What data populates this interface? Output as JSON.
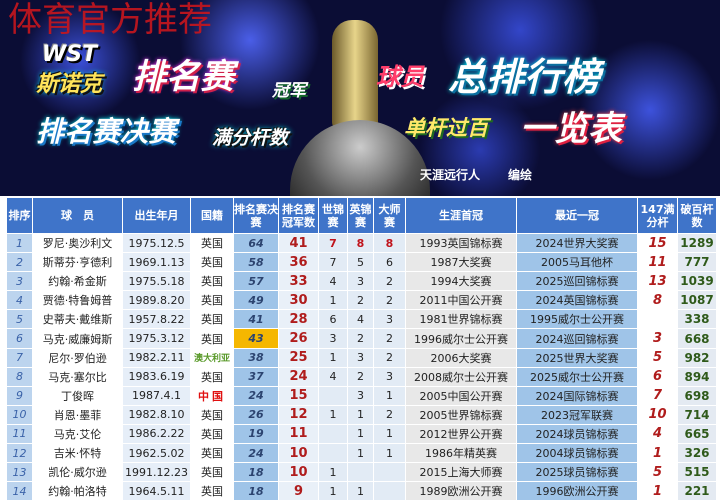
{
  "watermark": "体育官方推荐",
  "banner": {
    "logo": "WST",
    "line1a": "斯诺克",
    "line1b": "排名赛",
    "line1c": "冠军",
    "line1d": "球员",
    "line1e": "总排行榜",
    "line2a": "排名赛决赛",
    "line2b": "满分杆数",
    "line2c": "单杆过百",
    "line2d": "一览表",
    "author": "天涯远行人",
    "credit": "编绘"
  },
  "table": {
    "headers": [
      "排序",
      "球　员",
      "出生年月",
      "国籍",
      "排名赛决赛",
      "排名赛冠军数",
      "世锦赛",
      "英锦赛",
      "大师赛",
      "生涯首冠",
      "最近一冠",
      "147满分杆",
      "破百杆数"
    ],
    "rows": [
      [
        "1",
        "罗尼·奥沙利文",
        "1975.12.5",
        "英国",
        "64",
        "41",
        "7",
        "8",
        "8",
        "1993英国锦标赛",
        "2024世界大奖赛",
        "15",
        "1289"
      ],
      [
        "2",
        "斯蒂芬·亨德利",
        "1969.1.13",
        "英国",
        "58",
        "36",
        "7",
        "5",
        "6",
        "1987大奖赛",
        "2005马耳他杯",
        "11",
        "777"
      ],
      [
        "3",
        "约翰·希金斯",
        "1975.5.18",
        "英国",
        "57",
        "33",
        "4",
        "3",
        "2",
        "1994大奖赛",
        "2025巡回锦标赛",
        "13",
        "1039"
      ],
      [
        "4",
        "贾德·特鲁姆普",
        "1989.8.20",
        "英国",
        "49",
        "30",
        "1",
        "2",
        "2",
        "2011中国公开赛",
        "2024英国锦标赛",
        "8",
        "1087"
      ],
      [
        "5",
        "史蒂夫·戴维斯",
        "1957.8.22",
        "英国",
        "41",
        "28",
        "6",
        "4",
        "3",
        "1981世界锦标赛",
        "1995威尔士公开赛",
        "",
        "338"
      ],
      [
        "6",
        "马克·威廉姆斯",
        "1975.3.12",
        "英国",
        "43",
        "26",
        "3",
        "2",
        "2",
        "1996威尔士公开赛",
        "2024巡回锦标赛",
        "3",
        "668"
      ],
      [
        "7",
        "尼尔·罗伯逊",
        "1982.2.11",
        "澳大利亚",
        "38",
        "25",
        "1",
        "3",
        "2",
        "2006大奖赛",
        "2025世界大奖赛",
        "5",
        "982"
      ],
      [
        "8",
        "马克·塞尔比",
        "1983.6.19",
        "英国",
        "37",
        "24",
        "4",
        "2",
        "3",
        "2008威尔士公开赛",
        "2025威尔士公开赛",
        "6",
        "894"
      ],
      [
        "9",
        "丁俊晖",
        "1987.4.1",
        "中国",
        "24",
        "15",
        "",
        "3",
        "1",
        "2005中国公开赛",
        "2024国际锦标赛",
        "7",
        "698"
      ],
      [
        "10",
        "肖恩·墨菲",
        "1982.8.10",
        "英国",
        "26",
        "12",
        "1",
        "1",
        "2",
        "2005世界锦标赛",
        "2023冠军联赛",
        "10",
        "714"
      ],
      [
        "11",
        "马克·艾伦",
        "1986.2.22",
        "英国",
        "19",
        "11",
        "",
        "1",
        "1",
        "2012世界公开赛",
        "2024球员锦标赛",
        "4",
        "665"
      ],
      [
        "12",
        "吉米·怀特",
        "1962.5.02",
        "英国",
        "24",
        "10",
        "",
        "1",
        "1",
        "1986年精英赛",
        "2004球员锦标赛",
        "1",
        "326"
      ],
      [
        "13",
        "凯伦·威尔逊",
        "1991.12.23",
        "英国",
        "18",
        "10",
        "1",
        "",
        "",
        "2015上海大师赛",
        "2025球员锦标赛",
        "5",
        "515"
      ],
      [
        "14",
        "约翰·帕洛特",
        "1964.5.11",
        "英国",
        "18",
        "9",
        "1",
        "1",
        "",
        "1989欧洲公开赛",
        "1996欧洲公开赛",
        "1",
        "221"
      ]
    ]
  },
  "colors": {
    "header": "#3f74c9",
    "highlight": "#f5b700",
    "champ_red": "#b01c1c"
  }
}
